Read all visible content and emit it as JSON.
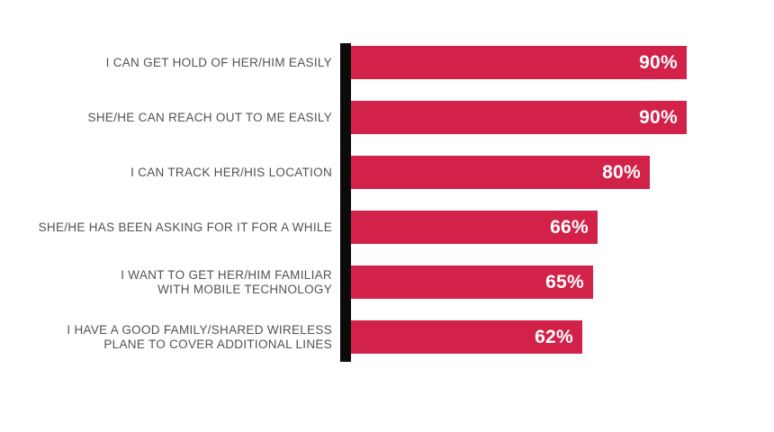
{
  "page": {
    "background_color": "#FFFFFF"
  },
  "chart_data": {
    "type": "bar",
    "orientation": "horizontal",
    "title": "",
    "xlabel": "",
    "ylabel": "",
    "grid": false,
    "legend": false,
    "xlim": [
      0,
      100
    ],
    "categories": [
      "I CAN GET HOLD OF HER/HIM EASILY",
      "SHE/HE CAN REACH OUT TO ME EASILY",
      "I CAN TRACK HER/HIS LOCATION",
      "SHE/HE HAS BEEN ASKING FOR IT FOR A WHILE",
      "I WANT TO GET HER/HIM FAMILIAR WITH MOBILE TECHNOLOGY",
      "I HAVE A GOOD FAMILY/SHARED WIRELESS PLANE TO COVER ADDITIONAL LINES"
    ],
    "categories_lines": [
      [
        "I CAN GET HOLD OF HER/HIM EASILY"
      ],
      [
        "SHE/HE CAN REACH OUT TO ME EASILY"
      ],
      [
        "I CAN TRACK HER/HIS LOCATION"
      ],
      [
        "SHE/HE HAS BEEN ASKING FOR IT FOR A WHILE"
      ],
      [
        "I WANT TO GET HER/HIM FAMILIAR",
        "WITH MOBILE TECHNOLOGY"
      ],
      [
        "I HAVE A GOOD FAMILY/SHARED WIRELESS",
        "PLANE TO COVER ADDITIONAL LINES"
      ]
    ],
    "values": [
      90,
      90,
      80,
      66,
      65,
      62
    ],
    "value_labels": [
      "90%",
      "90%",
      "80%",
      "66%",
      "65%",
      "62%"
    ],
    "unit": "%",
    "colors": {
      "bar": "#D2224A",
      "axis": "#0B0B0B",
      "category_label": "#515254",
      "value_label": "#FFFFFF"
    }
  }
}
